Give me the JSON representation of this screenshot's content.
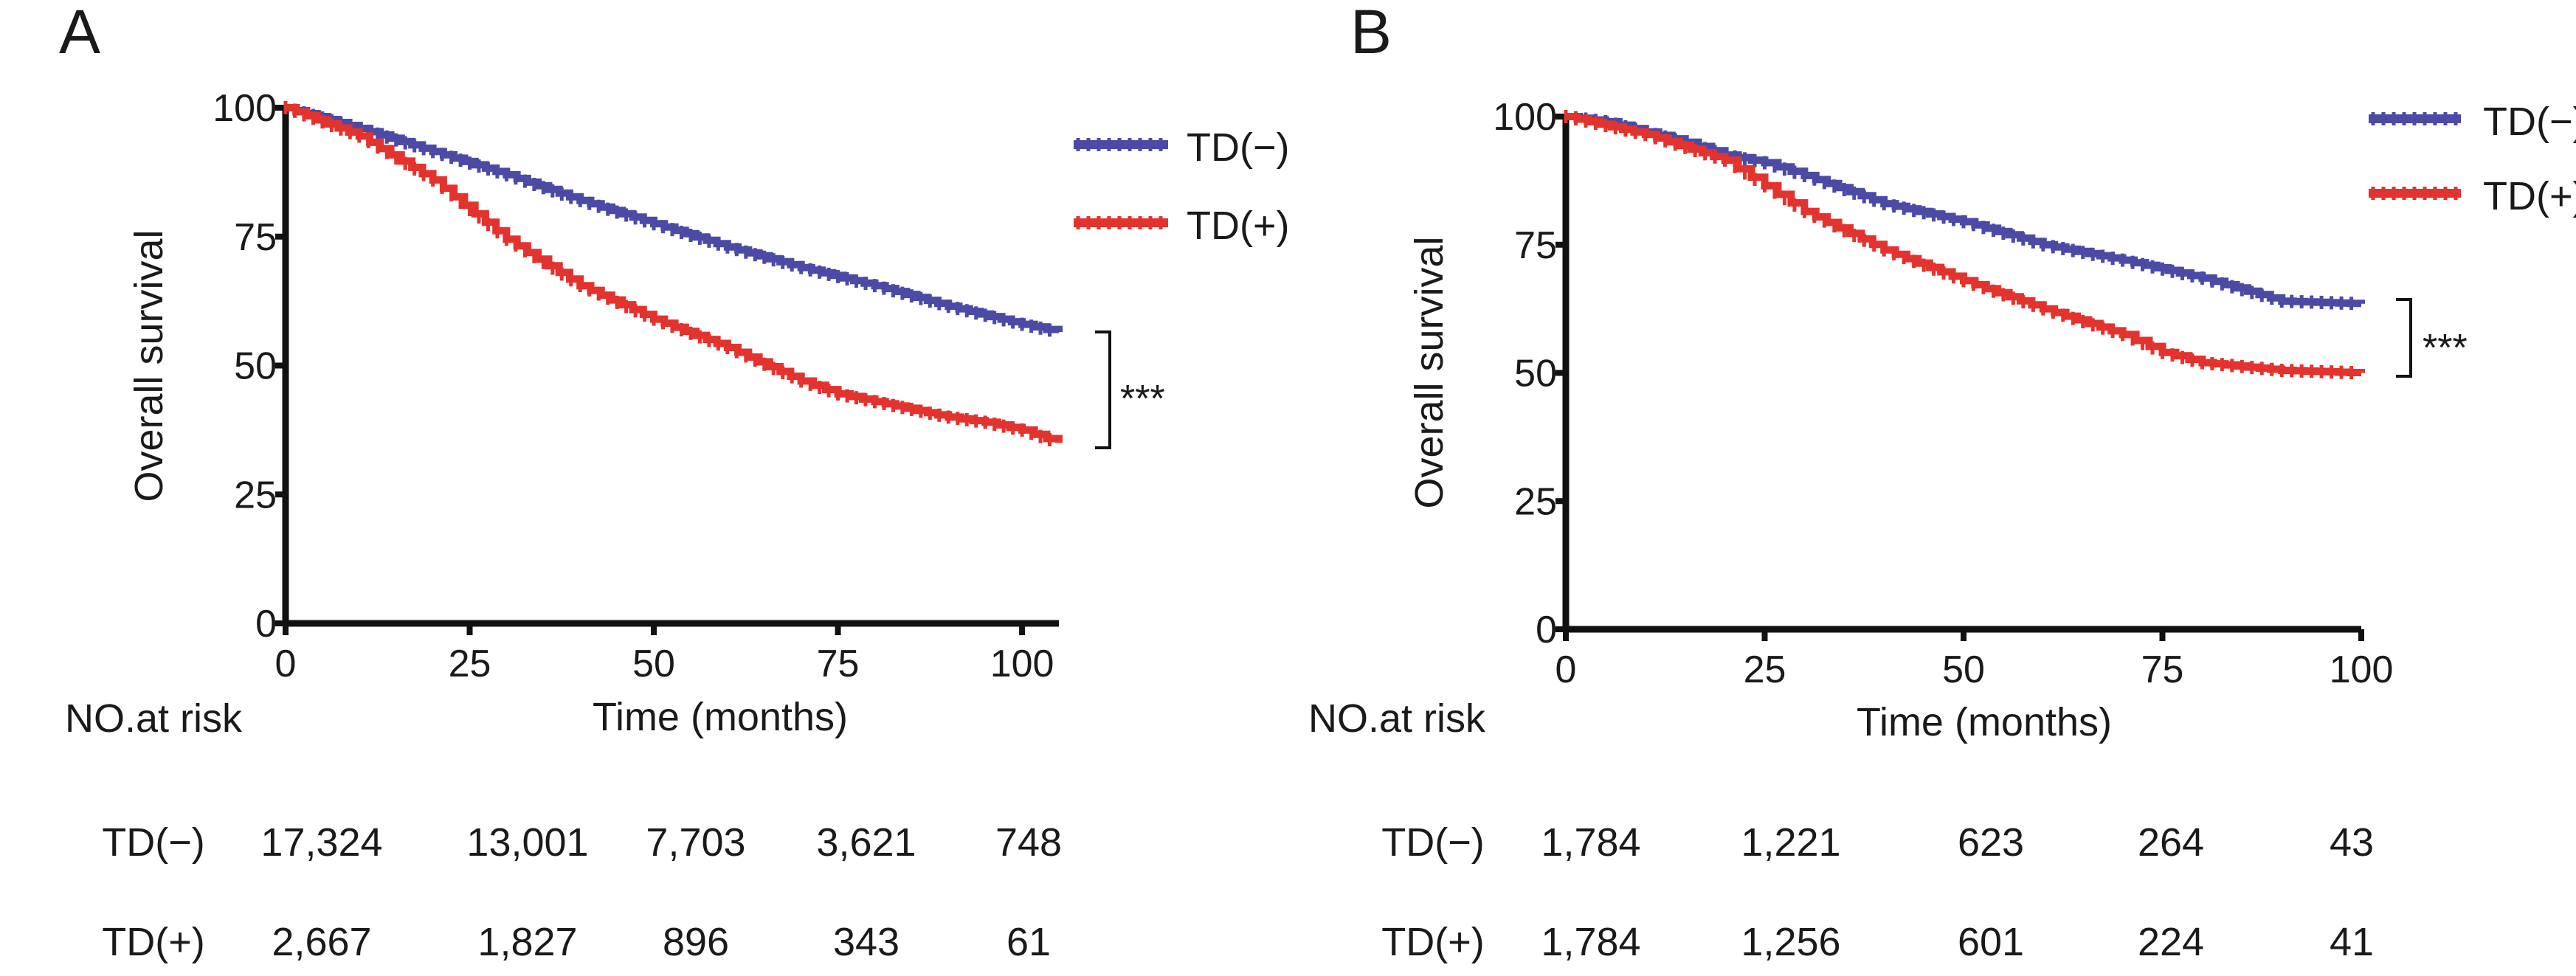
{
  "colors": {
    "td_neg": "#4B4BA6",
    "td_pos": "#E2332F",
    "axis": "#111111",
    "text": "#1a1a1a"
  },
  "panels": [
    {
      "letter": "A",
      "risk_title": "NO.at risk",
      "risk_rows": [
        {
          "label": "TD(−)",
          "values": [
            "17,324",
            "13,001",
            "7,703",
            "3,621",
            "748"
          ]
        },
        {
          "label": "TD(+)",
          "values": [
            "2,667",
            "1,827",
            "896",
            "343",
            "61"
          ]
        }
      ]
    },
    {
      "letter": "B",
      "risk_title": "NO.at risk",
      "risk_rows": [
        {
          "label": "TD(−)",
          "values": [
            "1,784",
            "1,221",
            "623",
            "264",
            "43"
          ]
        },
        {
          "label": "TD(+)",
          "values": [
            "1,784",
            "1,256",
            "601",
            "224",
            "41"
          ]
        }
      ]
    }
  ],
  "chart_data": [
    {
      "type": "line",
      "title": "A",
      "xlabel": "Time (months)",
      "ylabel": "Overall survival",
      "xlim": [
        0,
        105
      ],
      "ylim": [
        0,
        100
      ],
      "xticks": [
        0,
        25,
        50,
        75,
        100
      ],
      "yticks": [
        0,
        25,
        50,
        75,
        100
      ],
      "legend": "top-right",
      "significance": "***",
      "series": [
        {
          "name": "TD(−)",
          "x": [
            0,
            10,
            20,
            30,
            40,
            50,
            60,
            70,
            80,
            90,
            100,
            105
          ],
          "y": [
            100,
            96,
            91.5,
            87,
            82,
            77.5,
            73,
            69,
            65.5,
            61.5,
            58,
            56.5
          ]
        },
        {
          "name": "TD(+)",
          "x": [
            0,
            10,
            20,
            30,
            40,
            50,
            60,
            70,
            75,
            80,
            90,
            95,
            100,
            105
          ],
          "y": [
            100,
            94.5,
            86,
            74.5,
            65.5,
            59,
            53.5,
            47,
            44.5,
            43,
            40,
            39,
            37.5,
            35
          ]
        }
      ]
    },
    {
      "type": "line",
      "title": "B",
      "xlabel": "Time (months)",
      "ylabel": "Overall survival",
      "xlim": [
        0,
        100
      ],
      "ylim": [
        0,
        100
      ],
      "xticks": [
        0,
        25,
        50,
        75,
        100
      ],
      "yticks": [
        0,
        25,
        50,
        75,
        100
      ],
      "legend": "top-right",
      "significance": "***",
      "series": [
        {
          "name": "TD(−)",
          "x": [
            0,
            5,
            10,
            15,
            20,
            25,
            30,
            40,
            50,
            60,
            70,
            80,
            90,
            100
          ],
          "y": [
            100,
            99,
            97,
            95,
            92.5,
            91,
            88.5,
            83,
            79.5,
            75,
            72,
            68.5,
            64,
            63.5
          ]
        },
        {
          "name": "TD(+)",
          "x": [
            0,
            10,
            20,
            25,
            30,
            40,
            50,
            60,
            70,
            75,
            80,
            90,
            100
          ],
          "y": [
            100,
            96.5,
            91.5,
            86.5,
            81.5,
            74,
            68,
            62.5,
            57.5,
            54,
            52,
            50.5,
            50
          ]
        }
      ]
    }
  ]
}
